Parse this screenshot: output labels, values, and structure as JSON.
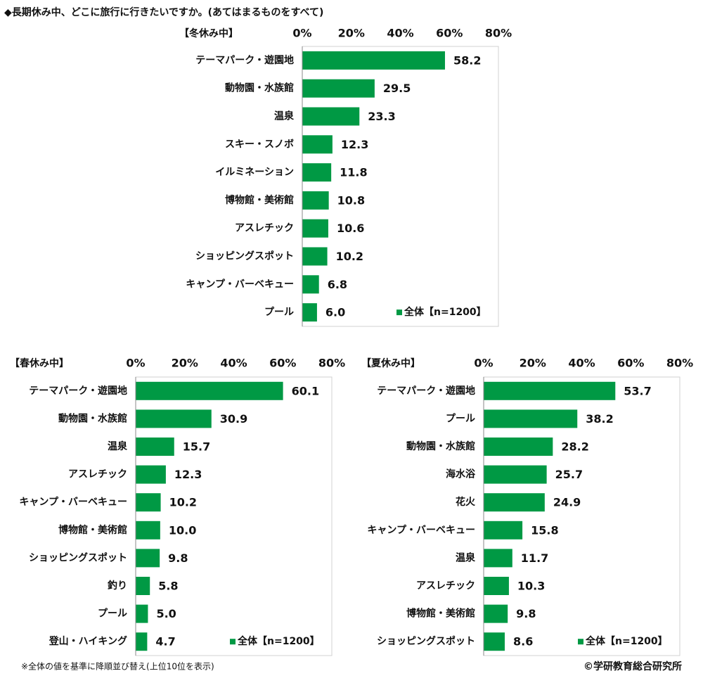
{
  "title": "◆長期休み中、どこに旅行に行きたいですか。(あてはまるものをすべて)",
  "footnote": "※全体の値を基準に降順並び替え(上位10位を表示)",
  "credit": "©学研教育総合研究所",
  "chart_data": [
    {
      "type": "bar",
      "orientation": "horizontal",
      "title": "【冬休み中】",
      "categories": [
        "テーマパーク・遊園地",
        "動物園・水族館",
        "温泉",
        "スキー・スノボ",
        "イルミネーション",
        "博物館・美術館",
        "アスレチック",
        "ショッピングスポット",
        "キャンプ・バーベキュー",
        "プール"
      ],
      "series": [
        {
          "name": "全体【n=1200】",
          "color": "#009944",
          "values": [
            58.2,
            29.5,
            23.3,
            12.3,
            11.8,
            10.8,
            10.6,
            10.2,
            6.8,
            6.0
          ],
          "value_labels": [
            "58.2",
            "29.5",
            "23.3",
            "12.3",
            "11.8",
            "10.8",
            "10.6",
            "10.2",
            "6.8",
            "6.0"
          ]
        }
      ],
      "xlim": [
        0,
        80
      ],
      "xticks": [
        {
          "value": 0,
          "label": "0%"
        },
        {
          "value": 20,
          "label": "20%"
        },
        {
          "value": 40,
          "label": "40%"
        },
        {
          "value": 60,
          "label": "60%"
        },
        {
          "value": 80,
          "label": "80%"
        }
      ],
      "legend": "lower right"
    },
    {
      "type": "bar",
      "orientation": "horizontal",
      "title": "【春休み中】",
      "categories": [
        "テーマパーク・遊園地",
        "動物園・水族館",
        "温泉",
        "アスレチック",
        "キャンプ・バーベキュー",
        "博物館・美術館",
        "ショッピングスポット",
        "釣り",
        "プール",
        "登山・ハイキング"
      ],
      "series": [
        {
          "name": "全体【n=1200】",
          "color": "#009944",
          "values": [
            60.1,
            30.9,
            15.7,
            12.3,
            10.2,
            10.0,
            9.8,
            5.8,
            5.0,
            4.7
          ],
          "value_labels": [
            "60.1",
            "30.9",
            "15.7",
            "12.3",
            "10.2",
            "10.0",
            "9.8",
            "5.8",
            "5.0",
            "4.7"
          ]
        }
      ],
      "xlim": [
        0,
        80
      ],
      "xticks": [
        {
          "value": 0,
          "label": "0%"
        },
        {
          "value": 20,
          "label": "20%"
        },
        {
          "value": 40,
          "label": "40%"
        },
        {
          "value": 60,
          "label": "60%"
        },
        {
          "value": 80,
          "label": "80%"
        }
      ],
      "legend": "lower right"
    },
    {
      "type": "bar",
      "orientation": "horizontal",
      "title": "【夏休み中】",
      "categories": [
        "テーマパーク・遊園地",
        "プール",
        "動物園・水族館",
        "海水浴",
        "花火",
        "キャンプ・バーベキュー",
        "温泉",
        "アスレチック",
        "博物館・美術館",
        "ショッピングスポット"
      ],
      "series": [
        {
          "name": "全体【n=1200】",
          "color": "#009944",
          "values": [
            53.7,
            38.2,
            28.2,
            25.7,
            24.9,
            15.8,
            11.7,
            10.3,
            9.8,
            8.6
          ],
          "value_labels": [
            "53.7",
            "38.2",
            "28.2",
            "25.7",
            "24.9",
            "15.8",
            "11.7",
            "10.3",
            "9.8",
            "8.6"
          ]
        }
      ],
      "xlim": [
        0,
        80
      ],
      "xticks": [
        {
          "value": 0,
          "label": "0%"
        },
        {
          "value": 20,
          "label": "20%"
        },
        {
          "value": 40,
          "label": "40%"
        },
        {
          "value": 60,
          "label": "60%"
        },
        {
          "value": 80,
          "label": "80%"
        }
      ],
      "legend": "lower right"
    }
  ]
}
